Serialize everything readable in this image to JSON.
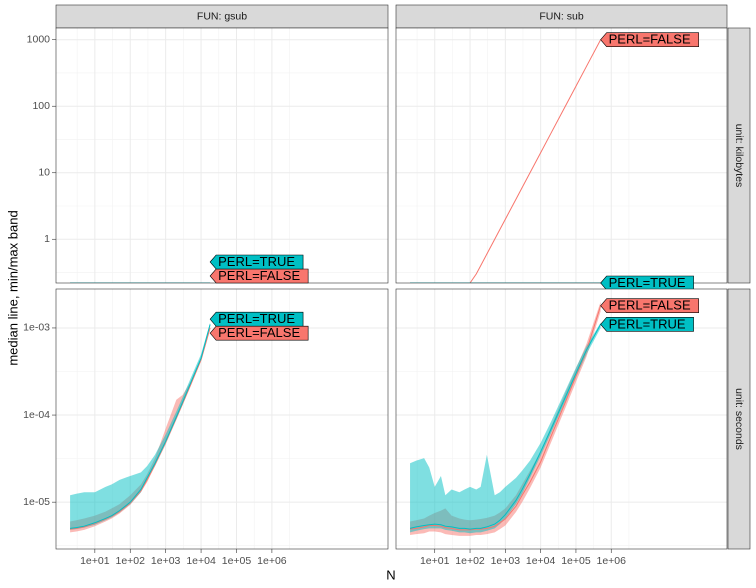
{
  "chart_data": {
    "type": "line",
    "x_label": "N",
    "y_label": "median line, min/max band",
    "x_log": true,
    "grid": true,
    "xlim": [
      0.8,
      1900000000
    ],
    "xticks": [
      {
        "value": 10,
        "label": "1e+01"
      },
      {
        "value": 100,
        "label": "1e+02"
      },
      {
        "value": 1000,
        "label": "1e+03"
      },
      {
        "value": 10000,
        "label": "1e+04"
      },
      {
        "value": 100000,
        "label": "1e+05"
      },
      {
        "value": 1000000,
        "label": "1e+06"
      }
    ],
    "facet_columns": [
      "FUN: gsub",
      "FUN: sub"
    ],
    "facet_rows": [
      {
        "label": "unit: kilobytes",
        "y_log": true,
        "ylim": [
          0.22,
          1500
        ],
        "yticks": [
          1,
          10,
          100,
          1000
        ]
      },
      {
        "label": "unit: seconds",
        "y_log": true,
        "ylim": [
          2.9e-06,
          0.0028
        ],
        "yticks": [
          {
            "value": 1e-05,
            "label": "1e-05"
          },
          {
            "value": 0.0001,
            "label": "1e-04"
          },
          {
            "value": 0.001,
            "label": "1e-03"
          }
        ]
      }
    ],
    "panels": [
      {
        "x": [
          2,
          3,
          5,
          10,
          20,
          30,
          50,
          100,
          200,
          300,
          500,
          1000,
          2000,
          3000,
          5000,
          10000,
          18000
        ],
        "series": [
          {
            "name": "PERL=FALSE",
            "color": "#F8766D",
            "values": [
              0,
              0,
              0,
              0,
              0,
              0,
              0,
              0,
              0,
              0,
              0,
              0,
              0,
              0,
              0,
              0,
              0
            ]
          },
          {
            "name": "PERL=TRUE",
            "color": "#00BFC4",
            "values": [
              0,
              0,
              0,
              0,
              0,
              0,
              0,
              0,
              0,
              0,
              0,
              0,
              0,
              0,
              0,
              0,
              0
            ]
          }
        ]
      },
      {
        "x": [
          2,
          3,
          5,
          7,
          10,
          15,
          20,
          30,
          50,
          70,
          100,
          150,
          200,
          300,
          500,
          700,
          1000,
          2000,
          3000,
          5000,
          10000,
          20000,
          50000,
          100000,
          200000,
          500000
        ],
        "series": [
          {
            "name": "PERL=FALSE",
            "color": "#F8766D",
            "values": [
              0,
              0,
              0,
              0,
              0,
              0,
              0,
              0,
              0,
              0,
              0.22,
              0.3,
              0.4,
              0.6,
              1,
              1.4,
              2,
              4,
              6,
              10,
              20,
              40,
              100,
              200,
              400,
              1000
            ]
          },
          {
            "name": "PERL=TRUE",
            "color": "#00BFC4",
            "values": [
              0,
              0,
              0,
              0,
              0,
              0,
              0,
              0,
              0,
              0,
              0,
              0,
              0,
              0,
              0,
              0,
              0,
              0,
              0,
              0,
              0,
              0,
              0,
              0,
              0,
              0
            ]
          }
        ]
      },
      {
        "x": [
          2,
          3,
          5,
          10,
          20,
          30,
          50,
          100,
          200,
          300,
          500,
          1000,
          2000,
          3000,
          5000,
          10000,
          18000
        ],
        "series": [
          {
            "name": "PERL=FALSE",
            "color": "#F8766D",
            "values": [
              4.9e-06,
              5e-06,
              5.2e-06,
              5.7e-06,
              6.4e-06,
              6.9e-06,
              7.8e-06,
              9.8e-06,
              1.35e-05,
              1.8e-05,
              2.7e-05,
              4.9e-05,
              9.2e-05,
              0.000135,
              0.00022,
              0.00043,
              0.001
            ],
            "min": [
              4.5e-06,
              4.6e-06,
              4.8e-06,
              5.3e-06,
              6e-06,
              6.5e-06,
              7.4e-06,
              9.3e-06,
              1.3e-05,
              1.7e-05,
              2.6e-05,
              4.6e-05,
              8.8e-05,
              0.00013,
              0.00021,
              0.00042,
              0.00098
            ],
            "max": [
              6e-06,
              6.2e-06,
              6.5e-06,
              7e-06,
              7.8e-06,
              8.5e-06,
              9.5e-06,
              1.2e-05,
              1.6e-05,
              2.1e-05,
              3.2e-05,
              7e-05,
              0.00015,
              0.00017,
              0.00024,
              0.00046,
              0.00105
            ]
          },
          {
            "name": "PERL=TRUE",
            "color": "#00BFC4",
            "values": [
              5e-06,
              5.1e-06,
              5.3e-06,
              5.8e-06,
              6.5e-06,
              7e-06,
              8e-06,
              1e-05,
              1.4e-05,
              1.9e-05,
              2.8e-05,
              5e-05,
              9.5e-05,
              0.00014,
              0.00023,
              0.00045,
              0.0011
            ],
            "min": [
              4.8e-06,
              4.9e-06,
              5.1e-06,
              5.5e-06,
              6.2e-06,
              6.7e-06,
              7.6e-06,
              9.5e-06,
              1.3e-05,
              1.8e-05,
              2.6e-05,
              4.7e-05,
              9e-05,
              0.00013,
              0.00022,
              0.00043,
              0.00105
            ],
            "max": [
              1.2e-05,
              1.25e-05,
              1.3e-05,
              1.3e-05,
              1.5e-05,
              1.6e-05,
              1.8e-05,
              2e-05,
              2.2e-05,
              2.6e-05,
              3.5e-05,
              6e-05,
              0.00011,
              0.00016,
              0.00026,
              0.0005,
              0.00115
            ]
          }
        ]
      },
      {
        "x": [
          2,
          3,
          5,
          7,
          10,
          15,
          20,
          30,
          50,
          70,
          100,
          150,
          200,
          300,
          500,
          700,
          1000,
          2000,
          3000,
          5000,
          10000,
          20000,
          50000,
          100000,
          200000,
          500000
        ],
        "series": [
          {
            "name": "PERL=FALSE",
            "color": "#F8766D",
            "values": [
              4.9e-06,
              5e-06,
              5.2e-06,
              5.4e-06,
              5.4e-06,
              5.3e-06,
              5.1e-06,
              5e-06,
              4.8e-06,
              4.8e-06,
              4.8e-06,
              4.9e-06,
              4.9e-06,
              5e-06,
              5.3e-06,
              5.8e-06,
              6.4e-06,
              9e-06,
              1.2e-05,
              1.7e-05,
              2.9e-05,
              5.8e-05,
              0.00014,
              0.00028,
              0.00055,
              0.0018
            ],
            "min": [
              4.2e-06,
              4.3e-06,
              4.4e-06,
              4.6e-06,
              4.6e-06,
              4.5e-06,
              4.3e-06,
              4.2e-06,
              4.1e-06,
              4.1e-06,
              4.1e-06,
              4.2e-06,
              4.2e-06,
              4.3e-06,
              4.5e-06,
              4.9e-06,
              5.4e-06,
              7.7e-06,
              1e-05,
              1.45e-05,
              2.5e-05,
              4.9e-05,
              0.00012,
              0.00024,
              0.00047,
              0.00155
            ],
            "max": [
              6e-06,
              6.2e-06,
              6.5e-06,
              7e-06,
              7.5e-06,
              8e-06,
              8.5e-06,
              7e-06,
              6.5e-06,
              6.3e-06,
              6.2e-06,
              6.3e-06,
              6.4e-06,
              6.6e-06,
              7e-06,
              7.6e-06,
              8.5e-06,
              1.2e-05,
              1.6e-05,
              2.3e-05,
              3.8e-05,
              7.5e-05,
              0.00018,
              0.00034,
              0.00066,
              0.002
            ]
          },
          {
            "name": "PERL=TRUE",
            "color": "#00BFC4",
            "values": [
              5e-06,
              5.2e-06,
              5.4e-06,
              5.5e-06,
              5.6e-06,
              5.5e-06,
              5.3e-06,
              5.2e-06,
              5e-06,
              5e-06,
              4.9e-06,
              5e-06,
              5e-06,
              5.2e-06,
              5.6e-06,
              6.2e-06,
              7.2e-06,
              1.05e-05,
              1.4e-05,
              2.1e-05,
              3.8e-05,
              7e-05,
              0.00016,
              0.0003,
              0.00056,
              0.0011
            ],
            "min": [
              4.5e-06,
              4.7e-06,
              4.9e-06,
              5e-06,
              5e-06,
              5e-06,
              4.8e-06,
              4.7e-06,
              4.5e-06,
              4.5e-06,
              4.4e-06,
              4.5e-06,
              4.5e-06,
              4.7e-06,
              5e-06,
              5.6e-06,
              6.5e-06,
              9.5e-06,
              1.25e-05,
              1.9e-05,
              3.4e-05,
              6.3e-05,
              0.000145,
              0.00027,
              0.0005,
              0.001
            ],
            "max": [
              2.8e-05,
              3e-05,
              3.2e-05,
              2.5e-05,
              1.5e-05,
              2e-05,
              1.2e-05,
              1.4e-05,
              1.3e-05,
              1.4e-05,
              1.5e-05,
              1.4e-05,
              1.5e-05,
              3.5e-05,
              1.2e-05,
              1.3e-05,
              1.5e-05,
              1.9e-05,
              2.3e-05,
              3e-05,
              4.8e-05,
              8.5e-05,
              0.00019,
              0.00035,
              0.00062,
              0.00115
            ]
          }
        ]
      }
    ]
  }
}
